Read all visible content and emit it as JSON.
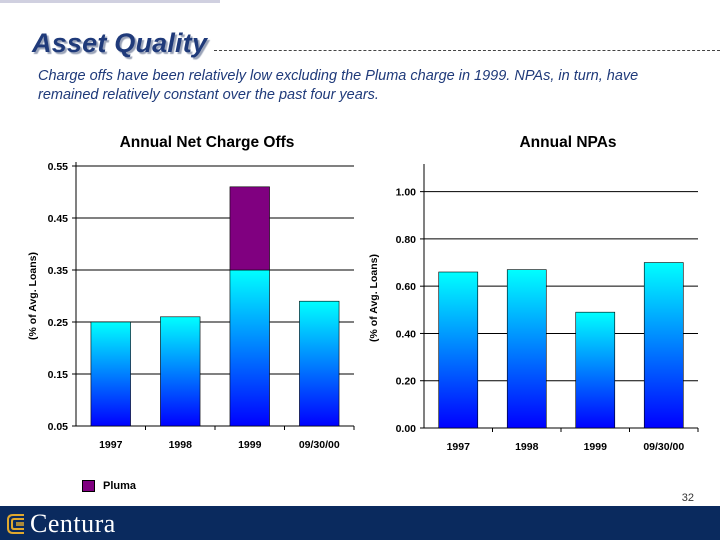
{
  "slide": {
    "title": "Asset Quality",
    "subtitle": "Charge offs have been relatively low excluding the Pluma charge in 1999.  NPAs, in turn, have remained relatively constant over the past four years.",
    "page_number": "32",
    "footer_brand": "Centura",
    "legend_label": "Pluma",
    "colors": {
      "title": "#1f3a7a",
      "bar_top": "#00ffff",
      "bar_bottom": "#0000ff",
      "pluma": "#800080",
      "footer": "#0a2a5e"
    }
  },
  "chart_data": [
    {
      "type": "bar",
      "stacked": true,
      "title": "Annual Net Charge Offs",
      "ylabel": "(% of Avg. Loans)",
      "xlabel": "",
      "categories": [
        "1997",
        "1998",
        "1999",
        "09/30/00"
      ],
      "series": [
        {
          "values": [
            0.25,
            0.26,
            0.35,
            0.29
          ]
        },
        {
          "name": "Pluma",
          "values": [
            0,
            0,
            0.16,
            0
          ]
        }
      ],
      "ylim": [
        0.05,
        0.55
      ],
      "yticks": [
        "0.05",
        "0.15",
        "0.25",
        "0.35",
        "0.45",
        "0.55"
      ],
      "grid": true,
      "legend": "bottom-left"
    },
    {
      "type": "bar",
      "title": "Annual NPAs",
      "ylabel": "(% of Avg. Loans)",
      "xlabel": "",
      "categories": [
        "1997",
        "1998",
        "1999",
        "09/30/00"
      ],
      "series": [
        {
          "values": [
            0.66,
            0.67,
            0.49,
            0.7
          ]
        }
      ],
      "ylim": [
        0,
        1.1
      ],
      "yticks": [
        "0.00",
        "0.20",
        "0.40",
        "0.60",
        "0.80",
        "1.00"
      ],
      "grid": true
    }
  ]
}
